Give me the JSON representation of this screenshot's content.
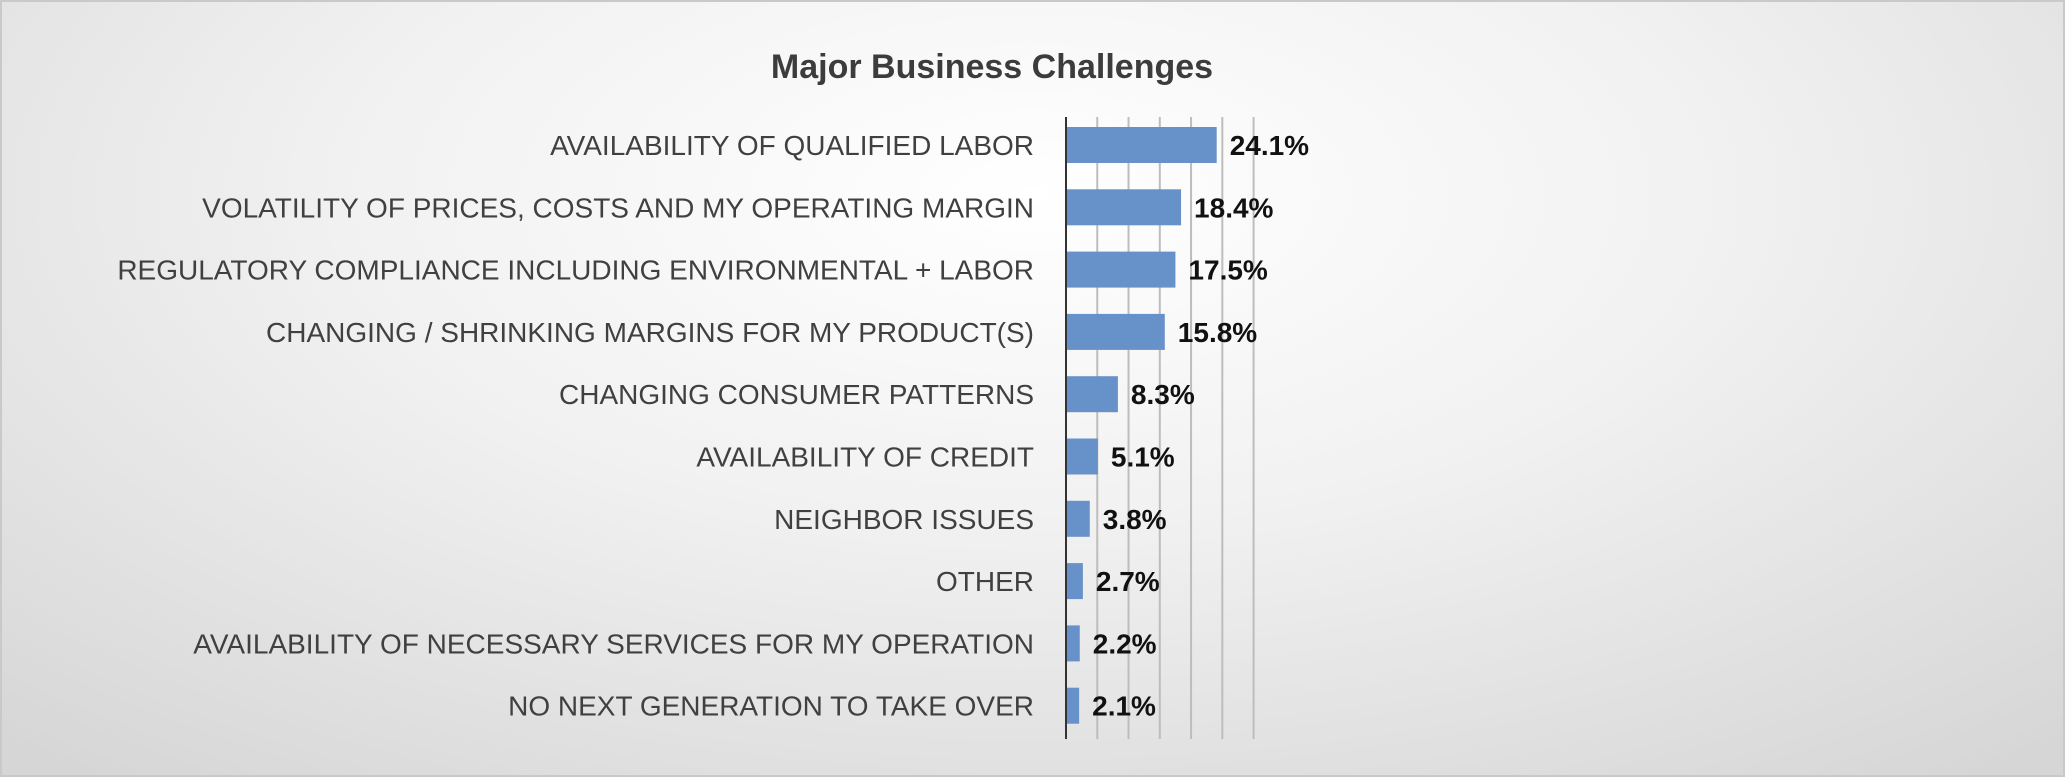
{
  "chart_data": {
    "type": "bar",
    "orientation": "horizontal",
    "title": "Major Business Challenges",
    "xlabel": "",
    "ylabel": "",
    "xlim": [
      0,
      30
    ],
    "grid": true,
    "legend": "none",
    "bar_color": "#6792c9",
    "value_format": "percent_1dp",
    "categories": [
      "AVAILABILITY OF QUALIFIED LABOR",
      "VOLATILITY OF PRICES, COSTS AND MY OPERATING MARGIN",
      "REGULATORY COMPLIANCE INCLUDING ENVIRONMENTAL + LABOR",
      "CHANGING / SHRINKING MARGINS FOR MY PRODUCT(S)",
      "CHANGING CONSUMER PATTERNS",
      "AVAILABILITY OF CREDIT",
      "NEIGHBOR ISSUES",
      "OTHER",
      "AVAILABILITY OF NECESSARY SERVICES FOR MY OPERATION",
      "NO NEXT GENERATION TO TAKE OVER"
    ],
    "values": [
      24.1,
      18.4,
      17.5,
      15.8,
      8.3,
      5.1,
      3.8,
      2.7,
      2.2,
      2.1
    ],
    "data_labels": [
      "24.1%",
      "18.4%",
      "17.5%",
      "15.8%",
      "8.3%",
      "5.1%",
      "3.8%",
      "2.7%",
      "2.2%",
      "2.1%"
    ]
  }
}
